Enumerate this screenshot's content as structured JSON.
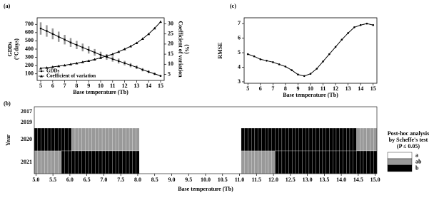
{
  "chart_data": [
    {
      "type": "line",
      "panel_label": "(a)",
      "xlabel": "Base temperature (Tb)",
      "ylabel": [
        "GDDs",
        "(°Cdays)"
      ],
      "y2label": [
        "Coefficient of variation",
        "(%)"
      ],
      "x": [
        5,
        5.5,
        6,
        6.5,
        7,
        7.5,
        8,
        8.5,
        9,
        9.5,
        10,
        10.5,
        11,
        11.5,
        12,
        12.5,
        13,
        13.5,
        14,
        14.5,
        15
      ],
      "series": [
        {
          "name": "GDDs",
          "color": "#000000",
          "marker": "circle",
          "error_color": "#999999",
          "values": [
            650,
            620,
            585,
            550,
            515,
            480,
            450,
            420,
            390,
            360,
            330,
            305,
            280,
            255,
            230,
            205,
            180,
            150,
            125,
            100,
            75
          ],
          "errors": [
            75,
            70,
            66,
            62,
            58,
            54,
            50,
            47,
            44,
            41,
            38,
            35,
            32,
            30,
            27,
            25,
            22,
            20,
            18,
            15,
            12
          ]
        },
        {
          "name": "Coefficient of variation",
          "color": "#000000",
          "marker": "triangle",
          "axis": "y2",
          "values": [
            8,
            8.3,
            8.7,
            9.1,
            9.5,
            10,
            10.5,
            11.1,
            11.7,
            12.4,
            13.2,
            14.1,
            15,
            16.2,
            17.5,
            18.9,
            20.5,
            22.6,
            25,
            27.8,
            31
          ]
        }
      ],
      "xlim": [
        4.7,
        15.3
      ],
      "xticks": [
        5,
        6,
        7,
        8,
        9,
        10,
        11,
        12,
        13,
        14,
        15
      ],
      "ylim": [
        20,
        780
      ],
      "yticks": [
        100,
        200,
        300,
        400,
        500,
        600,
        700
      ],
      "y2lim": [
        2,
        33
      ],
      "y2ticks": [
        5,
        10,
        15,
        20,
        25,
        30
      ],
      "legend": "lower left"
    },
    {
      "type": "line",
      "panel_label": "(c)",
      "xlabel": "Base temperature (Tb)",
      "ylabel": "RMSE",
      "x": [
        5,
        5.5,
        6,
        6.5,
        7,
        7.5,
        8,
        8.5,
        9,
        9.5,
        10,
        10.5,
        11,
        11.5,
        12,
        12.5,
        13,
        13.5,
        14,
        14.5,
        15
      ],
      "series": [
        {
          "color": "#000000",
          "marker": "circle",
          "values": [
            4.9,
            4.75,
            4.55,
            4.45,
            4.35,
            4.2,
            4.05,
            3.8,
            3.5,
            3.4,
            3.55,
            3.9,
            4.4,
            4.9,
            5.4,
            5.9,
            6.35,
            6.75,
            6.9,
            7.0,
            6.9
          ]
        }
      ],
      "xlim": [
        4.7,
        15.3
      ],
      "xticks": [
        5,
        6,
        7,
        8,
        9,
        10,
        11,
        12,
        13,
        14,
        15
      ],
      "ylim": [
        2.9,
        7.4
      ],
      "yticks": [
        3,
        4,
        5,
        6,
        7
      ]
    },
    {
      "type": "heatmap",
      "panel_label": "(b)",
      "xlabel": "Base temperature (Tb)",
      "ylabel": "Year",
      "categories": [
        "2017",
        "2019",
        "2020",
        "2021"
      ],
      "x": [
        5,
        5.1,
        5.2,
        5.3,
        5.4,
        5.5,
        5.6,
        5.7,
        5.8,
        5.9,
        6,
        6.1,
        6.2,
        6.3,
        6.4,
        6.5,
        6.6,
        6.7,
        6.8,
        6.9,
        7,
        7.1,
        7.2,
        7.3,
        7.4,
        7.5,
        7.6,
        7.7,
        7.8,
        7.9,
        8,
        8.1,
        8.2,
        8.3,
        8.4,
        8.5,
        8.6,
        8.7,
        8.8,
        8.9,
        9,
        9.1,
        9.2,
        9.3,
        9.4,
        9.5,
        9.6,
        9.7,
        9.8,
        9.9,
        10,
        10.1,
        10.2,
        10.3,
        10.4,
        10.5,
        10.6,
        10.7,
        10.8,
        10.9,
        11,
        11.1,
        11.2,
        11.3,
        11.4,
        11.5,
        11.6,
        11.7,
        11.8,
        11.9,
        12,
        12.1,
        12.2,
        12.3,
        12.4,
        12.5,
        12.6,
        12.7,
        12.8,
        12.9,
        13,
        13.1,
        13.2,
        13.3,
        13.4,
        13.5,
        13.6,
        13.7,
        13.8,
        13.9,
        14,
        14.1,
        14.2,
        14.3,
        14.4,
        14.5,
        14.6,
        14.7,
        14.8,
        14.9,
        15
      ],
      "values": [
        [
          "a",
          "a",
          "a",
          "a",
          "a",
          "a",
          "a",
          "a",
          "a",
          "a",
          "a",
          "a",
          "a",
          "a",
          "a",
          "a",
          "a",
          "a",
          "a",
          "a",
          "a",
          "a",
          "a",
          "a",
          "a",
          "a",
          "a",
          "a",
          "a",
          "a",
          "a",
          "a",
          "a",
          "a",
          "a",
          "a",
          "a",
          "a",
          "a",
          "a",
          "a",
          "a",
          "a",
          "a",
          "a",
          "a",
          "a",
          "a",
          "a",
          "a",
          "a",
          "a",
          "a",
          "a",
          "a",
          "a",
          "a",
          "a",
          "a",
          "a",
          "a",
          "a",
          "a",
          "a",
          "a",
          "a",
          "a",
          "a",
          "a",
          "a",
          "a",
          "a",
          "a",
          "a",
          "a",
          "a",
          "a",
          "a",
          "a",
          "a",
          "a",
          "a",
          "a",
          "a",
          "a",
          "a",
          "a",
          "a",
          "a",
          "a",
          "a",
          "a",
          "a",
          "a",
          "a",
          "a",
          "a",
          "a",
          "a",
          "a",
          "a"
        ],
        [
          "a",
          "a",
          "a",
          "a",
          "a",
          "a",
          "a",
          "a",
          "a",
          "a",
          "a",
          "a",
          "a",
          "a",
          "a",
          "a",
          "a",
          "a",
          "a",
          "a",
          "a",
          "a",
          "a",
          "a",
          "a",
          "a",
          "a",
          "a",
          "a",
          "a",
          "a",
          "a",
          "a",
          "a",
          "a",
          "a",
          "a",
          "a",
          "a",
          "a",
          "a",
          "a",
          "a",
          "a",
          "a",
          "a",
          "a",
          "a",
          "a",
          "a",
          "a",
          "a",
          "a",
          "a",
          "a",
          "a",
          "a",
          "a",
          "a",
          "a",
          "a",
          "a",
          "a",
          "a",
          "a",
          "a",
          "a",
          "a",
          "a",
          "a",
          "a",
          "a",
          "a",
          "a",
          "a",
          "a",
          "a",
          "a",
          "a",
          "a",
          "a",
          "a",
          "a",
          "a",
          "a",
          "a",
          "a",
          "a",
          "a",
          "a",
          "a",
          "a",
          "a",
          "a",
          "a",
          "a",
          "a",
          "a",
          "a",
          "a",
          "a"
        ],
        [
          "b",
          "b",
          "b",
          "b",
          "b",
          "b",
          "b",
          "b",
          "b",
          "b",
          "b",
          "ab",
          "ab",
          "ab",
          "ab",
          "ab",
          "ab",
          "ab",
          "ab",
          "ab",
          "ab",
          "ab",
          "ab",
          "ab",
          "ab",
          "ab",
          "ab",
          "ab",
          "ab",
          "ab",
          "ab",
          "a",
          "a",
          "a",
          "a",
          "a",
          "a",
          "a",
          "a",
          "a",
          "a",
          "a",
          "a",
          "a",
          "a",
          "a",
          "a",
          "a",
          "a",
          "a",
          "a",
          "a",
          "a",
          "a",
          "a",
          "a",
          "a",
          "a",
          "a",
          "a",
          "a",
          "b",
          "b",
          "b",
          "b",
          "b",
          "b",
          "b",
          "b",
          "b",
          "b",
          "b",
          "b",
          "b",
          "b",
          "b",
          "b",
          "b",
          "b",
          "b",
          "b",
          "b",
          "b",
          "b",
          "b",
          "b",
          "b",
          "b",
          "b",
          "b",
          "b",
          "b",
          "b",
          "b",
          "b",
          "ab",
          "ab",
          "ab",
          "ab",
          "ab",
          "ab"
        ],
        [
          "ab",
          "ab",
          "ab",
          "ab",
          "ab",
          "ab",
          "ab",
          "ab",
          "b",
          "b",
          "b",
          "b",
          "b",
          "b",
          "b",
          "b",
          "b",
          "b",
          "b",
          "b",
          "b",
          "b",
          "b",
          "b",
          "b",
          "b",
          "b",
          "b",
          "b",
          "b",
          "b",
          "a",
          "a",
          "a",
          "a",
          "a",
          "a",
          "a",
          "a",
          "a",
          "a",
          "a",
          "a",
          "a",
          "a",
          "a",
          "a",
          "a",
          "a",
          "a",
          "a",
          "a",
          "a",
          "a",
          "a",
          "a",
          "a",
          "a",
          "a",
          "a",
          "a",
          "ab",
          "ab",
          "ab",
          "ab",
          "ab",
          "ab",
          "ab",
          "ab",
          "ab",
          "ab",
          "b",
          "b",
          "b",
          "b",
          "b",
          "b",
          "b",
          "b",
          "b",
          "b",
          "b",
          "b",
          "b",
          "b",
          "b",
          "b",
          "b",
          "b",
          "b",
          "b",
          "b",
          "b",
          "b",
          "b",
          "b",
          "b",
          "b",
          "b",
          "b",
          "b"
        ]
      ],
      "xlim": [
        4.95,
        15.05
      ],
      "xticks": [
        {
          "value": 5,
          "label": "5.0"
        },
        5.5,
        {
          "value": 6,
          "label": "6.0"
        },
        6.5,
        {
          "value": 7,
          "label": "7.0"
        },
        7.5,
        {
          "value": 8,
          "label": "8.0"
        },
        8.5,
        {
          "value": 9,
          "label": "9.0"
        },
        9.5,
        {
          "value": 10,
          "label": "10.0"
        },
        10.5,
        {
          "value": 11,
          "label": "11.0"
        },
        11.5,
        {
          "value": 12,
          "label": "12.0"
        },
        12.5,
        {
          "value": 13,
          "label": "13.0"
        },
        13.5,
        {
          "value": 14,
          "label": "14.0"
        },
        14.5,
        {
          "value": 15,
          "label": "15.0"
        }
      ],
      "legend_title": [
        "Post-hoc analysis",
        "by Scheffe's test",
        "(P ≤ 0.05)"
      ],
      "groups": [
        {
          "name": "a",
          "color": "#ffffff"
        },
        {
          "name": "ab",
          "color": "#999999"
        },
        {
          "name": "b",
          "color": "#000000"
        }
      ]
    }
  ]
}
